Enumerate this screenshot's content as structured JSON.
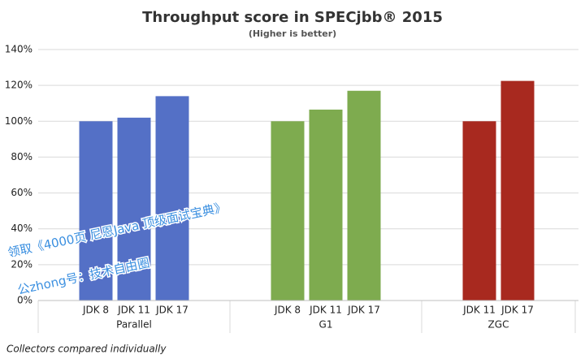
{
  "chart_data": {
    "type": "grouped_bar",
    "title": "Throughput score in SPECjbb® 2015",
    "subtitle": "(Higher is better)",
    "footnote": "Collectors compared individually",
    "groups": [
      {
        "name": "Parallel",
        "color": "#5470c6",
        "categories": [
          "JDK 8",
          "JDK 11",
          "JDK 17"
        ],
        "values": [
          100,
          102,
          114
        ]
      },
      {
        "name": "G1",
        "color": "#7eab4f",
        "categories": [
          "JDK 8",
          "JDK 11",
          "JDK 17"
        ],
        "values": [
          100,
          106.5,
          117
        ]
      },
      {
        "name": "ZGC",
        "color": "#a8291f",
        "categories": [
          "JDK 11",
          "JDK 17"
        ],
        "values": [
          100,
          122.5
        ]
      }
    ],
    "ylim": [
      0,
      140
    ],
    "yticks": [
      {
        "value": 0,
        "label": "0%"
      },
      {
        "value": 20,
        "label": "20%"
      },
      {
        "value": 40,
        "label": "40%"
      },
      {
        "value": 60,
        "label": "60%"
      },
      {
        "value": 80,
        "label": "80%"
      },
      {
        "value": 100,
        "label": "100%"
      },
      {
        "value": 120,
        "label": "120%"
      },
      {
        "value": 140,
        "label": "140%"
      }
    ],
    "grid": true,
    "annotations": [
      "领取《4000页 尼恩Java 顶级面试宝典》",
      "公zhong号：技术自由圈"
    ]
  }
}
